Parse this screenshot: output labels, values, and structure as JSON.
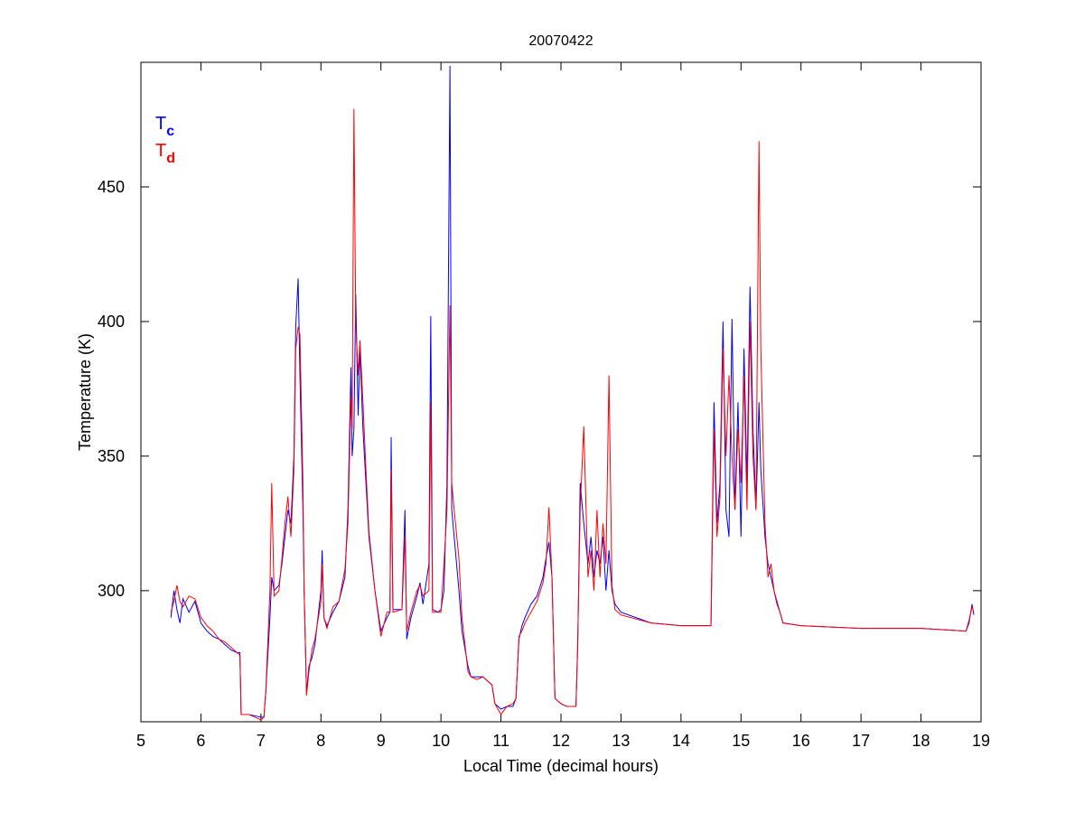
{
  "chart_data": {
    "type": "line",
    "title": "20070422",
    "x_label": "Local Time (decimal hours)",
    "y_label": "Temperature (K)",
    "x": [
      5.5,
      5.55,
      5.6,
      5.65,
      5.7,
      5.8,
      5.9,
      6.0,
      6.1,
      6.2,
      6.3,
      6.4,
      6.5,
      6.6,
      6.65,
      6.67,
      6.8,
      7.0,
      7.05,
      7.08,
      7.15,
      7.18,
      7.22,
      7.3,
      7.35,
      7.4,
      7.45,
      7.5,
      7.55,
      7.58,
      7.62,
      7.65,
      7.7,
      7.72,
      7.76,
      7.8,
      7.85,
      7.9,
      8.0,
      8.02,
      8.05,
      8.1,
      8.2,
      8.3,
      8.4,
      8.45,
      8.5,
      8.52,
      8.55,
      8.58,
      8.62,
      8.65,
      8.7,
      8.75,
      8.8,
      8.9,
      9.0,
      9.1,
      9.15,
      9.17,
      9.2,
      9.35,
      9.4,
      9.43,
      9.5,
      9.6,
      9.65,
      9.7,
      9.8,
      9.83,
      9.86,
      9.95,
      10.0,
      10.05,
      10.1,
      10.15,
      10.18,
      10.22,
      10.3,
      10.35,
      10.45,
      10.5,
      10.6,
      10.7,
      10.8,
      10.85,
      10.9,
      11.0,
      11.1,
      11.2,
      11.25,
      11.3,
      11.35,
      11.4,
      11.5,
      11.6,
      11.7,
      11.75,
      11.8,
      11.85,
      11.9,
      12.0,
      12.1,
      12.25,
      12.28,
      12.32,
      12.38,
      12.45,
      12.5,
      12.55,
      12.6,
      12.65,
      12.7,
      12.75,
      12.8,
      12.85,
      12.9,
      13.0,
      13.5,
      14.0,
      14.5,
      14.55,
      14.6,
      14.65,
      14.7,
      14.75,
      14.8,
      14.85,
      14.9,
      14.95,
      15.0,
      15.05,
      15.1,
      15.15,
      15.2,
      15.25,
      15.3,
      15.33,
      15.4,
      15.45,
      15.5,
      15.55,
      15.6,
      15.65,
      15.7,
      16.0,
      17.0,
      18.0,
      18.75,
      18.8,
      18.85,
      18.88
    ],
    "series": [
      {
        "name": "Tc",
        "color": "#0000ff",
        "values": [
          290,
          300,
          293,
          288,
          297,
          292,
          296,
          288,
          285,
          283,
          282,
          280,
          278,
          277,
          277,
          254,
          254,
          253,
          253,
          262,
          290,
          305,
          300,
          302,
          310,
          320,
          330,
          325,
          350,
          398,
          416,
          380,
          330,
          300,
          262,
          272,
          275,
          280,
          300,
          315,
          290,
          287,
          292,
          296,
          305,
          330,
          383,
          350,
          360,
          410,
          365,
          390,
          360,
          340,
          320,
          300,
          285,
          290,
          292,
          357,
          293,
          293,
          330,
          282,
          290,
          298,
          303,
          295,
          310,
          402,
          293,
          292,
          293,
          300,
          340,
          495,
          330,
          320,
          300,
          285,
          272,
          268,
          268,
          268,
          266,
          265,
          258,
          256,
          257,
          257,
          260,
          282,
          287,
          290,
          295,
          298,
          305,
          312,
          318,
          305,
          260,
          258,
          257,
          257,
          280,
          340,
          325,
          310,
          320,
          305,
          315,
          310,
          320,
          300,
          315,
          300,
          295,
          292,
          288,
          287,
          287,
          370,
          325,
          340,
          400,
          330,
          320,
          401,
          330,
          370,
          320,
          390,
          340,
          413,
          360,
          330,
          370,
          345,
          320,
          310,
          305,
          300,
          295,
          292,
          288,
          287,
          286,
          286,
          285,
          288,
          295,
          291
        ]
      },
      {
        "name": "Td",
        "color": "#ff0000",
        "values": [
          292,
          296,
          302,
          296,
          294,
          298,
          297,
          290,
          287,
          285,
          282,
          281,
          279,
          277,
          276,
          254,
          254,
          252,
          253,
          262,
          300,
          340,
          298,
          300,
          312,
          325,
          335,
          320,
          345,
          390,
          398,
          395,
          340,
          300,
          261,
          270,
          278,
          282,
          296,
          310,
          290,
          286,
          294,
          296,
          308,
          325,
          372,
          360,
          479,
          400,
          380,
          393,
          370,
          345,
          322,
          300,
          283,
          292,
          292,
          345,
          292,
          293,
          320,
          285,
          292,
          300,
          302,
          298,
          300,
          370,
          292,
          292,
          292,
          310,
          330,
          406,
          340,
          330,
          312,
          290,
          270,
          268,
          267,
          268,
          266,
          265,
          258,
          254,
          257,
          258,
          260,
          283,
          285,
          288,
          292,
          296,
          303,
          310,
          331,
          305,
          260,
          258,
          257,
          257,
          282,
          330,
          361,
          305,
          315,
          300,
          330,
          305,
          325,
          310,
          380,
          302,
          293,
          291,
          288,
          287,
          287,
          360,
          320,
          335,
          390,
          350,
          380,
          350,
          330,
          360,
          340,
          380,
          330,
          400,
          350,
          330,
          467,
          390,
          325,
          305,
          310,
          300,
          296,
          292,
          288,
          287,
          286,
          286,
          285,
          289,
          294,
          292
        ]
      }
    ],
    "xlim": [
      5,
      19
    ],
    "ylim": [
      251.3,
      496.3
    ],
    "xticks": [
      5,
      6,
      7,
      8,
      9,
      10,
      11,
      12,
      13,
      14,
      15,
      16,
      17,
      18,
      19
    ],
    "yticks": [
      300,
      350,
      400,
      450
    ]
  }
}
